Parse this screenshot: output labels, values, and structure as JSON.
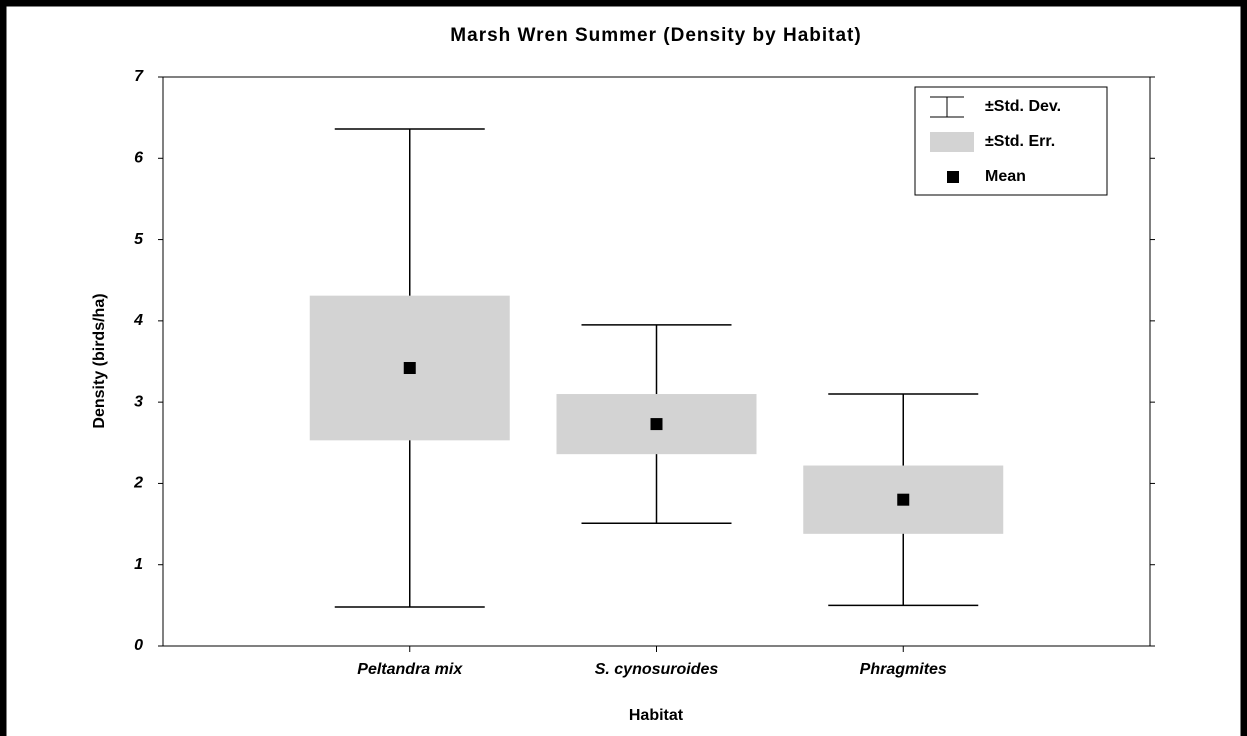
{
  "chart_data": {
    "type": "box",
    "title": "Marsh Wren Summer (Density by Habitat)",
    "x_label": "Habitat",
    "y_label": "Density (birds/ha)",
    "categories": [
      "Peltandra mix",
      "S. cynosuroides",
      "Phragmites"
    ],
    "series": [
      {
        "name": "Mean",
        "color": "#000000",
        "values": [
          3.42,
          2.73,
          1.8
        ]
      },
      {
        "name": "±Std. Err.",
        "color": "#d3d3d3",
        "values": [
          0.89,
          0.37,
          0.42
        ]
      },
      {
        "name": "±Std. Dev.",
        "color": "#000000",
        "values": [
          2.94,
          1.22,
          1.3
        ]
      }
    ],
    "ylim": [
      0,
      7
    ],
    "yticks": [
      0,
      1,
      2,
      3,
      4,
      5,
      6,
      7
    ],
    "legend": "top-right"
  }
}
